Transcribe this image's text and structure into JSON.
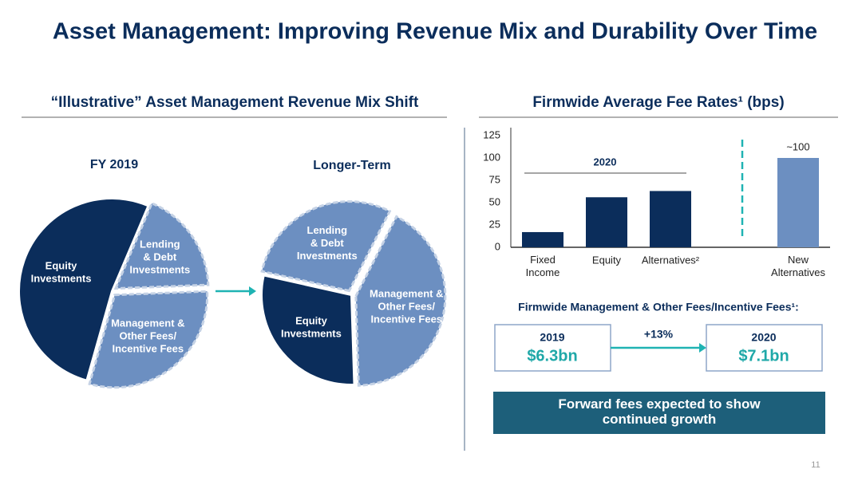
{
  "title": "Asset Management: Improving Revenue Mix and Durability Over Time",
  "left_heading": "“Illustrative” Asset Management Revenue Mix Shift",
  "chart_data": [
    {
      "type": "pie",
      "title": "FY 2019",
      "categories": [
        "Lending\n& Debt\nInvestments",
        "Management &\nOther Fees/\nIncentive Fees",
        "Equity\nInvestments"
      ],
      "values": [
        18,
        30,
        52
      ],
      "colors": [
        "#6c8fc1",
        "#6c8fc1",
        "#0b2d5b"
      ],
      "exploded": [
        true,
        true,
        false
      ]
    },
    {
      "type": "pie",
      "title": "Longer-Term",
      "categories": [
        "Management &\nOther Fees/\nIncentive Fees",
        "Equity\nInvestments",
        "Lending\n& Debt\nInvestments"
      ],
      "values": [
        42,
        29,
        29
      ],
      "colors": [
        "#6c8fc1",
        "#0b2d5b",
        "#6c8fc1"
      ],
      "exploded": [
        true,
        false,
        true
      ]
    },
    {
      "type": "bar",
      "title": "Firmwide Average Fee Rates¹ (bps)",
      "categories": [
        "Fixed\nIncome",
        "Equity",
        "Alternatives²",
        "New\nAlternatives"
      ],
      "values": [
        17,
        56,
        63,
        100
      ],
      "value_labels": [
        null,
        null,
        null,
        "~100"
      ],
      "colors": [
        "#0b2d5b",
        "#0b2d5b",
        "#0b2d5b",
        "#6c8fc1"
      ],
      "ylim": [
        0,
        125
      ],
      "yticks": [
        0,
        25,
        50,
        75,
        100,
        125
      ],
      "annotation": "2020"
    }
  ],
  "fees": {
    "heading": "Firmwide Management & Other Fees/Incentive Fees¹:",
    "from": {
      "year": "2019",
      "amount": "$6.3bn"
    },
    "change": "+13%",
    "to": {
      "year": "2020",
      "amount": "$7.1bn"
    }
  },
  "banner": "Forward fees expected to show\ncontinued growth",
  "page": "11"
}
